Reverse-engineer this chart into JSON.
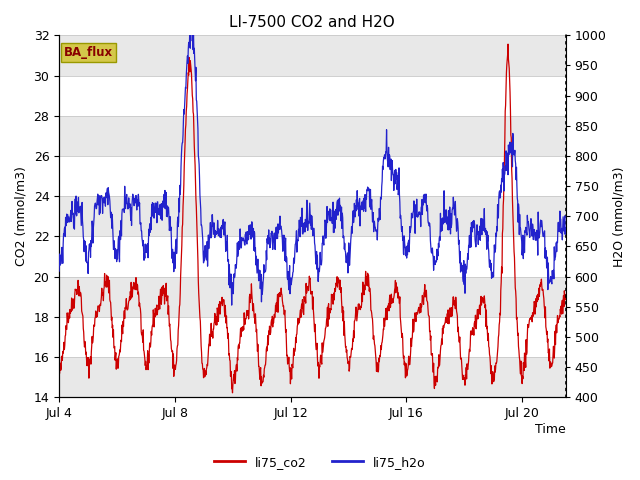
{
  "title": "LI-7500 CO2 and H2O",
  "xlabel": "Time",
  "ylabel_left": "CO2 (mmol/m3)",
  "ylabel_right": "H2O (mmol/m3)",
  "ylim_left": [
    14,
    32
  ],
  "ylim_right": [
    400,
    1000
  ],
  "yticks_left": [
    14,
    16,
    18,
    20,
    22,
    24,
    26,
    28,
    30,
    32
  ],
  "yticks_right": [
    400,
    450,
    500,
    550,
    600,
    650,
    700,
    750,
    800,
    850,
    900,
    950,
    1000
  ],
  "xtick_labels": [
    "Jul 4",
    "Jul 8",
    "Jul 12",
    "Jul 16",
    "Jul 20"
  ],
  "xtick_positions": [
    0,
    4,
    8,
    12,
    16
  ],
  "x_max": 17.5,
  "color_co2": "#cc0000",
  "color_h2o": "#2222cc",
  "legend_co2": "li75_co2",
  "legend_h2o": "li75_h2o",
  "badge_text": "BA_flux",
  "badge_bg": "#d4c84a",
  "badge_fg": "#880000",
  "bg_color": "#ffffff",
  "band_color": "#e8e8e8",
  "grid_color": "#c8c8c8",
  "title_fontsize": 11,
  "label_fontsize": 9,
  "tick_fontsize": 9
}
